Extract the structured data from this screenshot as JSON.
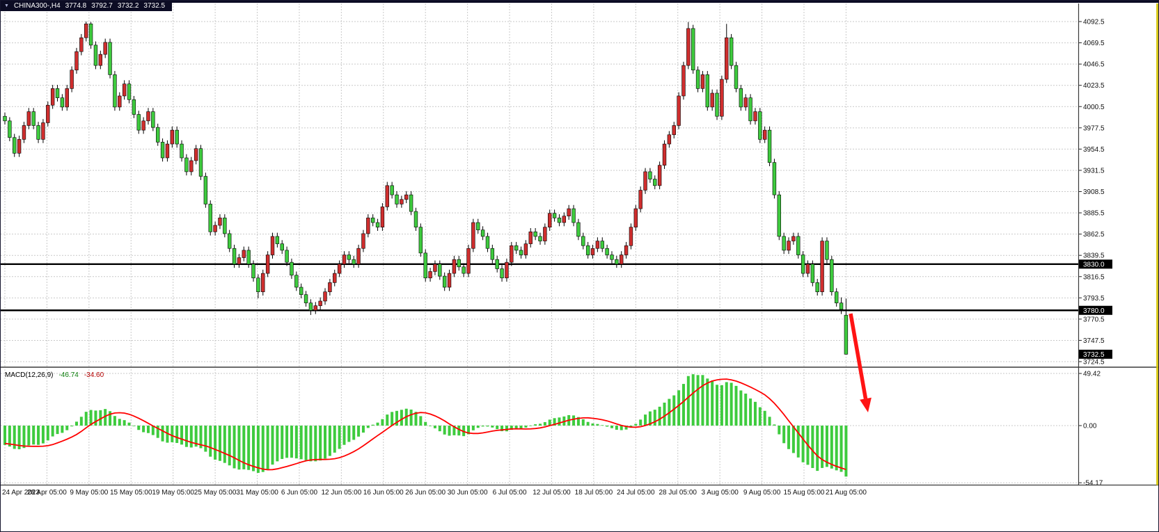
{
  "header": {
    "collapse_icon": "▼",
    "symbol_period": "CHINA300-,H4",
    "open": "3774.8",
    "high": "3792.7",
    "low": "3732.2",
    "close": "3732.5"
  },
  "macd_panel": {
    "label": "MACD(12,26,9)",
    "value_main": "-46.74",
    "value_signal": "-34.60"
  },
  "colors": {
    "up_candle": "#cf2e2e",
    "down_candle": "#3ecb3e",
    "wick": "#000000",
    "grid": "#c9c9c9",
    "level_line": "#000000",
    "macd_hist": "#3ecb3e",
    "macd_signal": "#ff0000",
    "arrow": "#ff1414",
    "axis_text": "#111111",
    "header_bg": "#0c0c24",
    "header_text": "#ffffff",
    "scale_marker": "#d4c400"
  },
  "chart_data": {
    "type": "candlestick",
    "title": "CHINA300-,H4",
    "symbol": "CHINA300-",
    "timeframe": "H4",
    "ylim": [
      3724.5,
      4092.5
    ],
    "y_ticks": [
      4092.5,
      4069.5,
      4046.5,
      4023.5,
      4000.5,
      3977.5,
      3954.5,
      3931.5,
      3908.5,
      3885.5,
      3862.5,
      3839.5,
      3816.5,
      3793.5,
      3770.5,
      3747.5,
      3724.5
    ],
    "x_labels": [
      "24 Apr 2023",
      "28 Apr 05:00",
      "9 May 05:00",
      "15 May 05:00",
      "19 May 05:00",
      "25 May 05:00",
      "31 May 05:00",
      "6 Jun 05:00",
      "12 Jun 05:00",
      "16 Jun 05:00",
      "26 Jun 05:00",
      "30 Jun 05:00",
      "6 Jul 05:00",
      "12 Jul 05:00",
      "18 Jul 05:00",
      "24 Jul 05:00",
      "28 Jul 05:00",
      "3 Aug 05:00",
      "9 Aug 05:00",
      "15 Aug 05:00",
      "21 Aug 05:00"
    ],
    "levels": [
      3830.0,
      3780.0
    ],
    "current_price": 3732.5,
    "last_bar": {
      "open": 3774.8,
      "high": 3792.7,
      "low": 3732.2,
      "close": 3732.5
    },
    "indicator": {
      "type": "macd",
      "label": "MACD(12,26,9)",
      "params": [
        12,
        26,
        9
      ],
      "display": "histogram+signal",
      "current_main": -46.74,
      "current_signal": -34.6,
      "scale": [
        49.42,
        0,
        -54.17
      ]
    },
    "annotations": [
      {
        "type": "horizontal_line",
        "price": 3830.0,
        "color": "#000000"
      },
      {
        "type": "horizontal_line",
        "price": 3780.0,
        "color": "#000000"
      },
      {
        "type": "arrow",
        "direction": "down-right",
        "color": "#ff1414"
      }
    ],
    "candles": [
      [
        3990,
        3994,
        3981,
        3985
      ],
      [
        3985,
        3989,
        3963,
        3967
      ],
      [
        3967,
        3971,
        3946,
        3950
      ],
      [
        3950,
        3969,
        3946,
        3965
      ],
      [
        3965,
        3984,
        3961,
        3980
      ],
      [
        3980,
        3999,
        3976,
        3995
      ],
      [
        3995,
        3999,
        3976,
        3980
      ],
      [
        3980,
        3984,
        3961,
        3965
      ],
      [
        3965,
        3987,
        3961,
        3983
      ],
      [
        3983,
        4006,
        3979,
        4002
      ],
      [
        4002,
        4024,
        3998,
        4020
      ],
      [
        4020,
        4024,
        4006,
        4010
      ],
      [
        4010,
        4014,
        3996,
        4000
      ],
      [
        4000,
        4024,
        3996,
        4020
      ],
      [
        4020,
        4044,
        4016,
        4040
      ],
      [
        4040,
        4064,
        4036,
        4060
      ],
      [
        4060,
        4079,
        4056,
        4075
      ],
      [
        4075,
        4092.5,
        4071,
        4090
      ],
      [
        4090,
        4092,
        4063,
        4067
      ],
      [
        4067,
        4071,
        4041,
        4045
      ],
      [
        4045,
        4061,
        4041,
        4057
      ],
      [
        4057,
        4074,
        4053,
        4070
      ],
      [
        4070,
        4074,
        4031,
        4035
      ],
      [
        4035,
        4039,
        3996,
        4000
      ],
      [
        4000,
        4016,
        3996,
        4012
      ],
      [
        4012,
        4029,
        4008,
        4025
      ],
      [
        4025,
        4029,
        4004,
        4008
      ],
      [
        4008,
        4012,
        3988,
        3992
      ],
      [
        3992,
        3996,
        3971,
        3975
      ],
      [
        3975,
        3989,
        3971,
        3985
      ],
      [
        3985,
        3999,
        3981,
        3995
      ],
      [
        3995,
        3999,
        3974,
        3978
      ],
      [
        3978,
        3982,
        3958,
        3962
      ],
      [
        3962,
        3966,
        3941,
        3945
      ],
      [
        3945,
        3964,
        3941,
        3960
      ],
      [
        3960,
        3979,
        3956,
        3975
      ],
      [
        3975,
        3979,
        3956,
        3960
      ],
      [
        3960,
        3964,
        3941,
        3945
      ],
      [
        3945,
        3949,
        3926,
        3930
      ],
      [
        3930,
        3946,
        3926,
        3942
      ],
      [
        3942,
        3959,
        3938,
        3955
      ],
      [
        3955,
        3959,
        3921,
        3925
      ],
      [
        3925,
        3929,
        3891,
        3895
      ],
      [
        3895,
        3899,
        3861,
        3865
      ],
      [
        3865,
        3876,
        3861,
        3872
      ],
      [
        3872,
        3884,
        3868,
        3880
      ],
      [
        3880,
        3884,
        3859,
        3863
      ],
      [
        3863,
        3867,
        3843,
        3847
      ],
      [
        3847,
        3851,
        3826,
        3830
      ],
      [
        3830,
        3841,
        3826,
        3837
      ],
      [
        3837,
        3849,
        3833,
        3845
      ],
      [
        3845,
        3849,
        3826,
        3830
      ],
      [
        3830,
        3834,
        3811,
        3815
      ],
      [
        3815,
        3819,
        3793,
        3800
      ],
      [
        3800,
        3824,
        3796,
        3820
      ],
      [
        3820,
        3844,
        3816,
        3840
      ],
      [
        3840,
        3864,
        3836,
        3860
      ],
      [
        3860,
        3864,
        3848,
        3852
      ],
      [
        3852,
        3856,
        3841,
        3845
      ],
      [
        3845,
        3849,
        3828,
        3832
      ],
      [
        3832,
        3836,
        3814,
        3818
      ],
      [
        3818,
        3822,
        3801,
        3805
      ],
      [
        3805,
        3809,
        3793,
        3797
      ],
      [
        3797,
        3801,
        3784,
        3788
      ],
      [
        3788,
        3792,
        3775,
        3780
      ],
      [
        3780,
        3789,
        3776,
        3785
      ],
      [
        3785,
        3794,
        3781,
        3790
      ],
      [
        3790,
        3804,
        3786,
        3800
      ],
      [
        3800,
        3814,
        3796,
        3810
      ],
      [
        3810,
        3824,
        3806,
        3820
      ],
      [
        3820,
        3834,
        3816,
        3830
      ],
      [
        3830,
        3844,
        3826,
        3840
      ],
      [
        3840,
        3844,
        3831,
        3835
      ],
      [
        3835,
        3839,
        3826,
        3830
      ],
      [
        3830,
        3851,
        3826,
        3847
      ],
      [
        3847,
        3867,
        3843,
        3863
      ],
      [
        3863,
        3884,
        3859,
        3880
      ],
      [
        3880,
        3884,
        3871,
        3875
      ],
      [
        3875,
        3879,
        3866,
        3870
      ],
      [
        3870,
        3896,
        3866,
        3892
      ],
      [
        3892,
        3919,
        3888,
        3915
      ],
      [
        3915,
        3919,
        3901,
        3905
      ],
      [
        3905,
        3909,
        3891,
        3895
      ],
      [
        3895,
        3904,
        3891,
        3900
      ],
      [
        3900,
        3909,
        3896,
        3905
      ],
      [
        3905,
        3909,
        3883,
        3887
      ],
      [
        3887,
        3891,
        3866,
        3870
      ],
      [
        3870,
        3874,
        3838,
        3842
      ],
      [
        3842,
        3846,
        3811,
        3815
      ],
      [
        3815,
        3826,
        3811,
        3822
      ],
      [
        3822,
        3834,
        3818,
        3830
      ],
      [
        3830,
        3834,
        3813,
        3817
      ],
      [
        3817,
        3821,
        3801,
        3805
      ],
      [
        3805,
        3824,
        3801,
        3820
      ],
      [
        3820,
        3839,
        3816,
        3835
      ],
      [
        3835,
        3839,
        3823,
        3827
      ],
      [
        3827,
        3831,
        3816,
        3820
      ],
      [
        3820,
        3851,
        3816,
        3847
      ],
      [
        3847,
        3879,
        3843,
        3875
      ],
      [
        3875,
        3879,
        3863,
        3867
      ],
      [
        3867,
        3871,
        3856,
        3860
      ],
      [
        3860,
        3864,
        3843,
        3847
      ],
      [
        3847,
        3851,
        3831,
        3835
      ],
      [
        3835,
        3839,
        3821,
        3825
      ],
      [
        3825,
        3829,
        3811,
        3815
      ],
      [
        3815,
        3836,
        3811,
        3832
      ],
      [
        3832,
        3854,
        3828,
        3850
      ],
      [
        3850,
        3854,
        3841,
        3845
      ],
      [
        3845,
        3849,
        3836,
        3840
      ],
      [
        3840,
        3856,
        3836,
        3852
      ],
      [
        3852,
        3869,
        3848,
        3865
      ],
      [
        3865,
        3869,
        3856,
        3860
      ],
      [
        3860,
        3864,
        3851,
        3855
      ],
      [
        3855,
        3874,
        3851,
        3870
      ],
      [
        3870,
        3889,
        3866,
        3885
      ],
      [
        3885,
        3889,
        3876,
        3880
      ],
      [
        3880,
        3884,
        3871,
        3875
      ],
      [
        3875,
        3886,
        3871,
        3882
      ],
      [
        3882,
        3894,
        3878,
        3890
      ],
      [
        3890,
        3894,
        3871,
        3875
      ],
      [
        3875,
        3879,
        3856,
        3860
      ],
      [
        3860,
        3864,
        3846,
        3850
      ],
      [
        3850,
        3854,
        3836,
        3840
      ],
      [
        3840,
        3851,
        3836,
        3847
      ],
      [
        3847,
        3859,
        3843,
        3855
      ],
      [
        3855,
        3859,
        3843,
        3847
      ],
      [
        3847,
        3851,
        3836,
        3840
      ],
      [
        3840,
        3844,
        3831,
        3835
      ],
      [
        3835,
        3839,
        3826,
        3830
      ],
      [
        3830,
        3844,
        3826,
        3840
      ],
      [
        3840,
        3854,
        3836,
        3850
      ],
      [
        3850,
        3874,
        3846,
        3870
      ],
      [
        3870,
        3894,
        3866,
        3890
      ],
      [
        3890,
        3914,
        3886,
        3910
      ],
      [
        3910,
        3934,
        3906,
        3930
      ],
      [
        3930,
        3934,
        3918,
        3922
      ],
      [
        3922,
        3926,
        3911,
        3915
      ],
      [
        3915,
        3941,
        3911,
        3937
      ],
      [
        3937,
        3964,
        3933,
        3960
      ],
      [
        3960,
        3974,
        3956,
        3970
      ],
      [
        3970,
        3984,
        3966,
        3980
      ],
      [
        3980,
        4016,
        3976,
        4012
      ],
      [
        4012,
        4049,
        4008,
        4045
      ],
      [
        4045,
        4092,
        4041,
        4085
      ],
      [
        4085,
        4089,
        4036,
        4040
      ],
      [
        4040,
        4044,
        4016,
        4020
      ],
      [
        4020,
        4039,
        4016,
        4035
      ],
      [
        4035,
        4039,
        3996,
        4000
      ],
      [
        4000,
        4019,
        3996,
        4015
      ],
      [
        4015,
        4019,
        3986,
        3990
      ],
      [
        3990,
        4034,
        3986,
        4030
      ],
      [
        4030,
        4090,
        4026,
        4075
      ],
      [
        4075,
        4079,
        4041,
        4045
      ],
      [
        4045,
        4049,
        4016,
        4020
      ],
      [
        4020,
        4024,
        3996,
        4000
      ],
      [
        4000,
        4014,
        3996,
        4010
      ],
      [
        4010,
        4014,
        3981,
        3985
      ],
      [
        3985,
        3999,
        3981,
        3995
      ],
      [
        3995,
        3999,
        3961,
        3965
      ],
      [
        3965,
        3979,
        3961,
        3975
      ],
      [
        3975,
        3979,
        3936,
        3940
      ],
      [
        3940,
        3944,
        3901,
        3905
      ],
      [
        3905,
        3909,
        3856,
        3860
      ],
      [
        3860,
        3864,
        3841,
        3845
      ],
      [
        3845,
        3859,
        3841,
        3855
      ],
      [
        3855,
        3864,
        3851,
        3860
      ],
      [
        3860,
        3864,
        3836,
        3840
      ],
      [
        3840,
        3844,
        3816,
        3820
      ],
      [
        3820,
        3834,
        3816,
        3830
      ],
      [
        3830,
        3834,
        3806,
        3810
      ],
      [
        3810,
        3814,
        3796,
        3800
      ],
      [
        3800,
        3859,
        3796,
        3855
      ],
      [
        3855,
        3859,
        3831,
        3835
      ],
      [
        3835,
        3839,
        3796,
        3800
      ],
      [
        3800,
        3804,
        3784,
        3788
      ],
      [
        3788,
        3794,
        3776,
        3781
      ],
      [
        3774.8,
        3792.7,
        3732.2,
        3732.5
      ]
    ]
  }
}
